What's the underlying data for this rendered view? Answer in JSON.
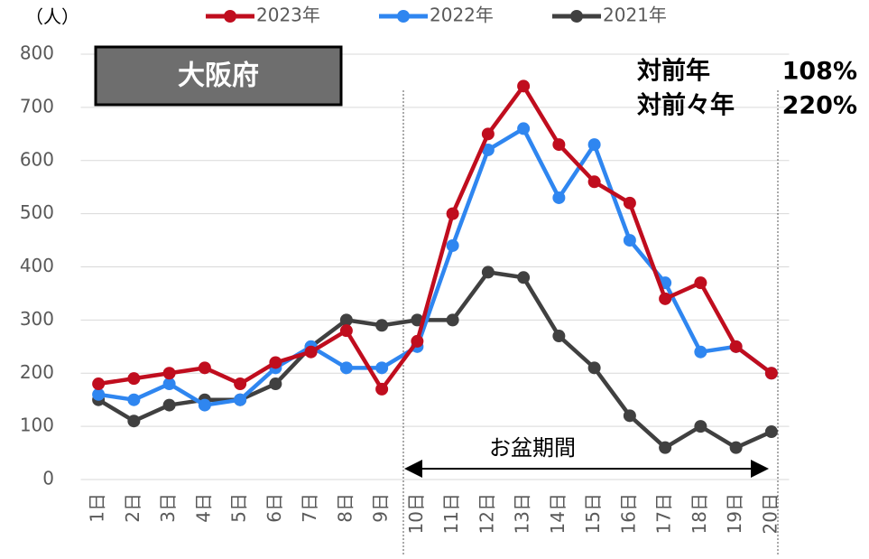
{
  "chart_data": {
    "type": "line",
    "y_label": "（人）",
    "box_title": "大阪府",
    "annotations": {
      "yoy_label": "対前年",
      "yoy_value": "108%",
      "yoy2_label": "対前々年",
      "yoy2_value": "220%",
      "period": "お盆期間"
    },
    "categories": [
      "1日",
      "2日",
      "3日",
      "4日",
      "5日",
      "6日",
      "7日",
      "8日",
      "9日",
      "10日",
      "11日",
      "12日",
      "13日",
      "14日",
      "15日",
      "16日",
      "17日",
      "18日",
      "19日",
      "20日"
    ],
    "series": [
      {
        "name": "2023年",
        "color": "#c00d1e",
        "values": [
          180,
          190,
          200,
          210,
          180,
          220,
          240,
          280,
          170,
          260,
          500,
          650,
          740,
          630,
          560,
          520,
          340,
          370,
          250,
          200
        ]
      },
      {
        "name": "2022年",
        "color": "#2f86f0",
        "values": [
          160,
          150,
          180,
          140,
          150,
          210,
          250,
          210,
          210,
          250,
          440,
          620,
          660,
          530,
          630,
          450,
          370,
          240,
          250,
          200
        ]
      },
      {
        "name": "2021年",
        "color": "#404040",
        "values": [
          150,
          110,
          140,
          150,
          150,
          180,
          250,
          300,
          290,
          300,
          300,
          390,
          380,
          270,
          210,
          120,
          60,
          100,
          60,
          90
        ]
      }
    ],
    "ylim": [
      0,
      800
    ],
    "yticks": [
      0,
      100,
      200,
      300,
      400,
      500,
      600,
      700,
      800
    ],
    "grid": true,
    "legend": "top"
  }
}
